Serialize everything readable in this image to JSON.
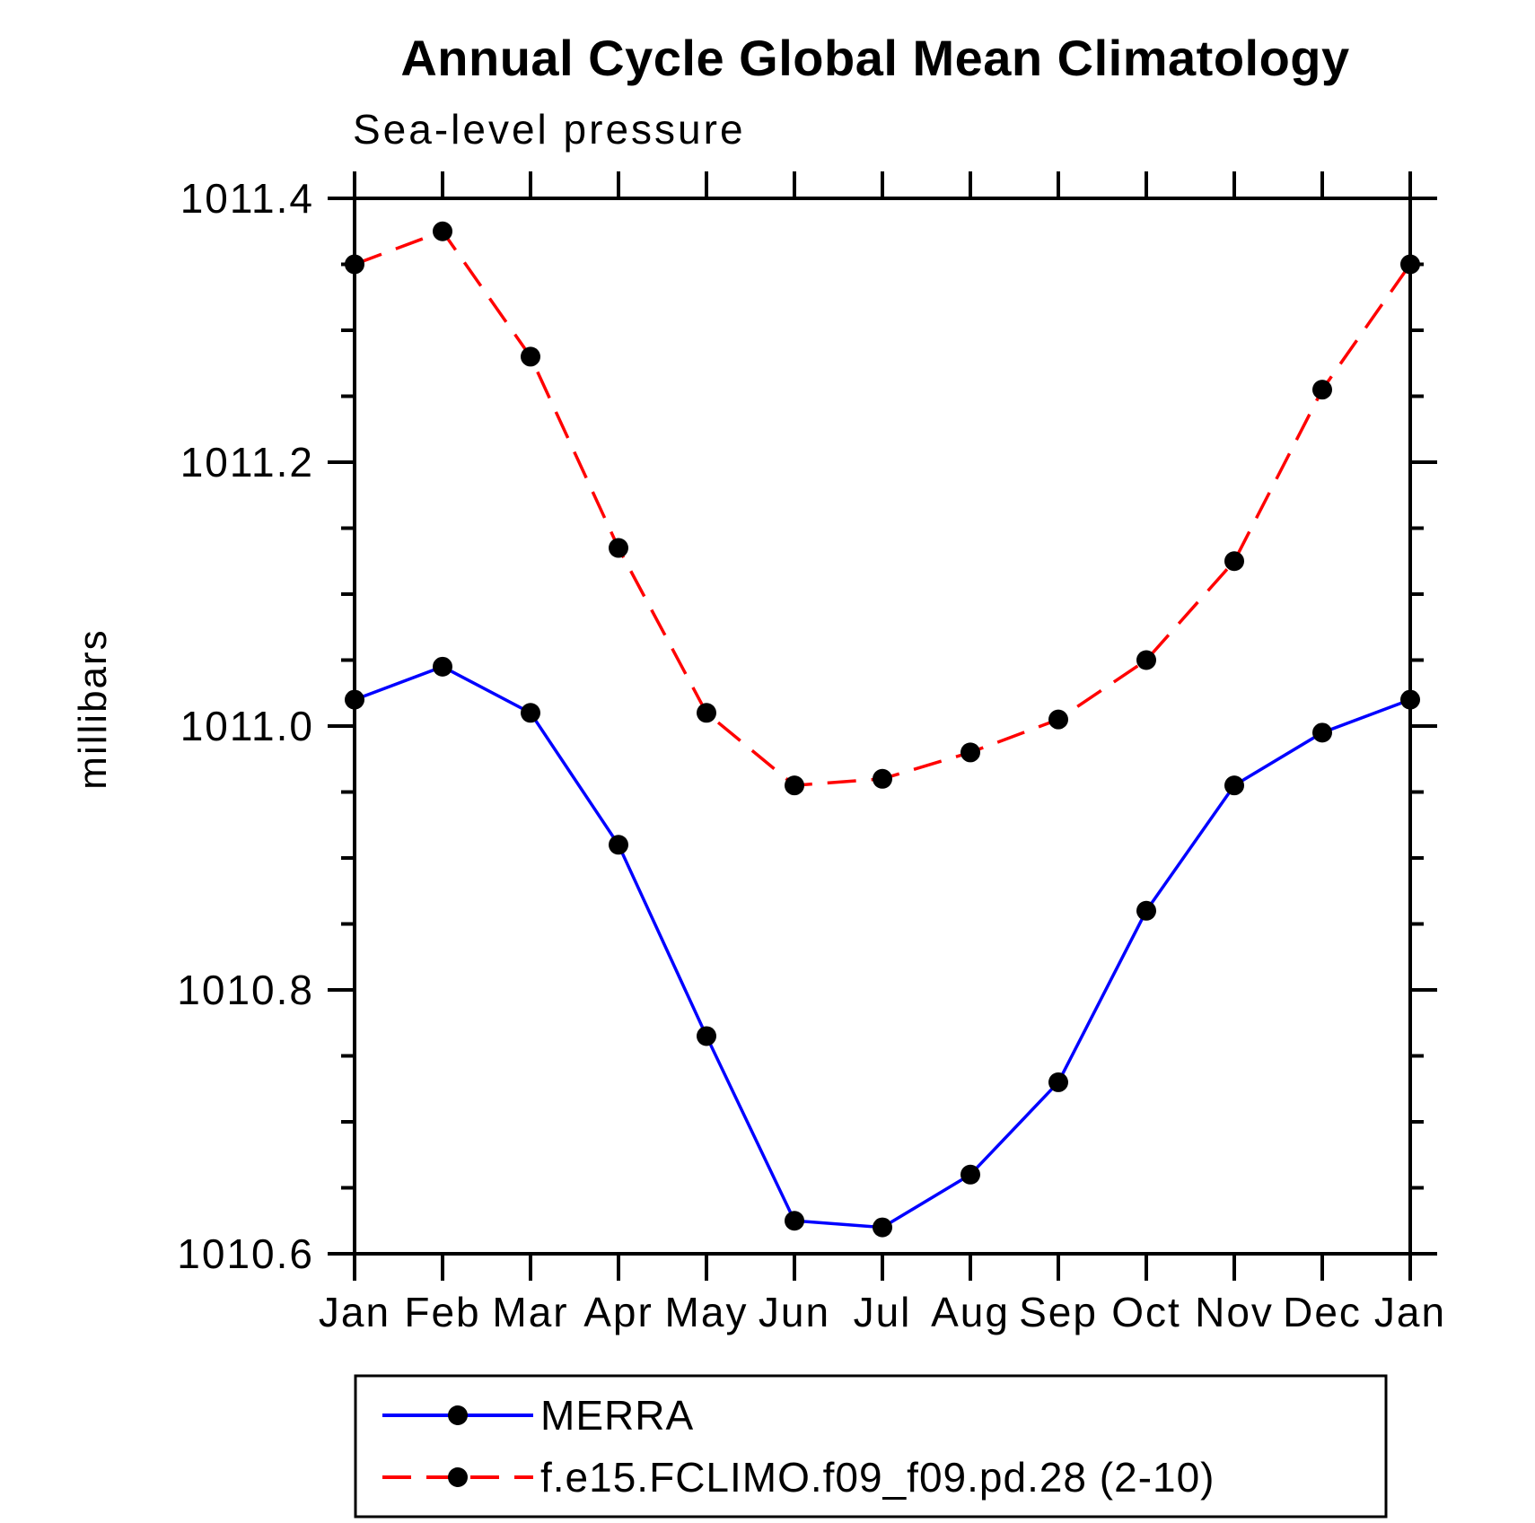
{
  "page": {
    "background_color": "#ffffff",
    "text_color": "#000000"
  },
  "chart_data": {
    "type": "line",
    "title": "Annual Cycle Global Mean Climatology",
    "subtitle": "Sea-level pressure",
    "xlabel": "",
    "ylabel": "millibars",
    "categories": [
      "Jan",
      "Feb",
      "Mar",
      "Apr",
      "May",
      "Jun",
      "Jul",
      "Aug",
      "Sep",
      "Oct",
      "Nov",
      "Dec",
      "Jan"
    ],
    "ylim": [
      1010.6,
      1011.4
    ],
    "ytick_interval": 0.2,
    "yminor_interval": 0.05,
    "ytick_labels": [
      "1011.4",
      "1011.2",
      "1011.0",
      "1010.8",
      "1010.6"
    ],
    "grid": false,
    "legend_position": "bottom-left-box",
    "frame_color": "#000000",
    "marker": "filled-circle",
    "marker_color": "#000000",
    "series": [
      {
        "name": "MERRA",
        "color": "#0000ff",
        "line_style": "solid",
        "values": [
          1011.02,
          1011.045,
          1011.01,
          1010.91,
          1010.765,
          1010.625,
          1010.62,
          1010.66,
          1010.73,
          1010.86,
          1010.955,
          1010.995,
          1011.02
        ]
      },
      {
        "name": "f.e15.FCLIMO.f09_f09.pd.28 (2-10)",
        "color": "#ff0000",
        "line_style": "dashed",
        "values": [
          1011.35,
          1011.375,
          1011.28,
          1011.135,
          1011.01,
          1010.955,
          1010.96,
          1010.98,
          1011.005,
          1011.05,
          1011.125,
          1011.255,
          1011.35
        ]
      }
    ]
  }
}
